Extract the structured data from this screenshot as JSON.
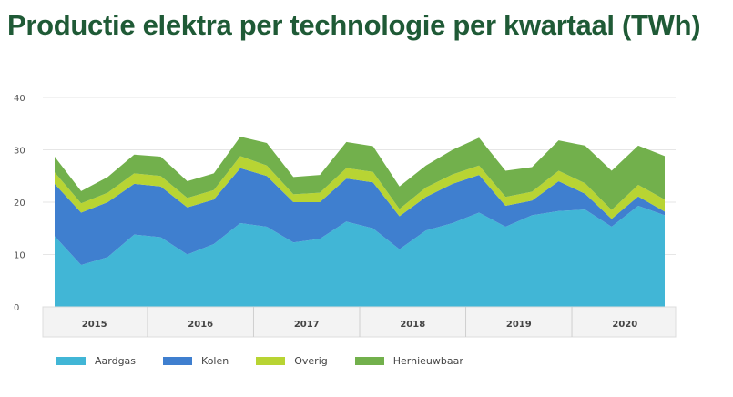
{
  "title": "Productie elektra per technologie per kwartaal (TWh)",
  "chart_data": {
    "type": "area",
    "stacked": true,
    "title": "Productie elektra per technologie per kwartaal (TWh)",
    "xlabel": "",
    "ylabel": "",
    "ylim": [
      0,
      40
    ],
    "yticks": [
      "0",
      "10",
      "20",
      "30",
      "40"
    ],
    "year_labels": [
      "2015",
      "2016",
      "2017",
      "2018",
      "2019",
      "2020"
    ],
    "quarters_per_year": 4,
    "x": [
      "2015 Q1",
      "2015 Q2",
      "2015 Q3",
      "2015 Q4",
      "2016 Q1",
      "2016 Q2",
      "2016 Q3",
      "2016 Q4",
      "2017 Q1",
      "2017 Q2",
      "2017 Q3",
      "2017 Q4",
      "2018 Q1",
      "2018 Q2",
      "2018 Q3",
      "2018 Q4",
      "2019 Q1",
      "2019 Q2",
      "2019 Q3",
      "2019 Q4",
      "2020 Q1",
      "2020 Q2",
      "2020 Q3",
      "2020 Q4"
    ],
    "series": [
      {
        "name": "Aardgas",
        "color": "#41b6d6",
        "values": [
          13.5,
          8.0,
          9.5,
          13.8,
          13.3,
          10.0,
          12.0,
          16.0,
          15.3,
          12.3,
          13.0,
          16.3,
          15.0,
          11.0,
          14.6,
          16.0,
          18.0,
          15.3,
          17.5,
          18.3,
          18.6,
          15.3,
          19.3,
          17.5
        ]
      },
      {
        "name": "Kolen",
        "color": "#3f7fcf",
        "values": [
          10.0,
          10.0,
          10.5,
          9.7,
          9.7,
          9.0,
          8.5,
          10.5,
          9.7,
          7.7,
          7.0,
          8.2,
          8.8,
          6.3,
          6.4,
          7.5,
          7.2,
          4.0,
          2.8,
          5.7,
          3.0,
          1.5,
          1.8,
          0.7
        ]
      },
      {
        "name": "Overig",
        "color": "#b8d433",
        "values": [
          2.2,
          1.8,
          1.8,
          2.0,
          2.0,
          1.8,
          1.8,
          2.3,
          2.0,
          1.5,
          1.8,
          2.0,
          2.0,
          1.4,
          1.8,
          1.8,
          1.8,
          1.7,
          1.7,
          2.0,
          2.0,
          1.7,
          2.2,
          2.3
        ]
      },
      {
        "name": "Hernieuwbaar",
        "color": "#72b04c",
        "values": [
          3.0,
          2.3,
          3.0,
          3.6,
          3.7,
          3.2,
          3.2,
          3.7,
          4.3,
          3.3,
          3.4,
          5.0,
          4.9,
          4.3,
          4.2,
          4.7,
          5.3,
          5.0,
          4.7,
          5.8,
          7.2,
          7.5,
          7.5,
          8.3
        ]
      }
    ],
    "legend_position": "bottom-left",
    "grid": true
  }
}
